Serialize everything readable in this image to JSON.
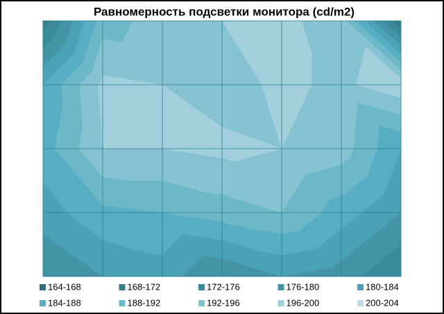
{
  "chart_data": {
    "type": "contour",
    "title": "Равномерность  подсветки монитора  (cd/m2)",
    "values": [
      [
        170,
        190,
        194,
        196,
        197,
        194,
        168
      ],
      [
        184,
        197,
        196,
        194,
        197,
        195,
        199
      ],
      [
        186,
        196,
        196,
        197,
        196,
        194,
        184
      ],
      [
        182,
        187,
        188,
        190,
        192,
        186,
        180
      ],
      [
        176,
        180,
        182,
        176,
        180,
        178,
        172
      ]
    ],
    "bands": [
      {
        "name": "164-168",
        "from": 164,
        "to": 168,
        "color": "#2f7080"
      },
      {
        "name": "168-172",
        "from": 168,
        "to": 172,
        "color": "#347e8f"
      },
      {
        "name": "172-176",
        "from": 172,
        "to": 176,
        "color": "#3b8a9b"
      },
      {
        "name": "176-180",
        "from": 176,
        "to": 180,
        "color": "#4494a5"
      },
      {
        "name": "180-184",
        "from": 180,
        "to": 184,
        "color": "#4ba1b5"
      },
      {
        "name": "184-188",
        "from": 184,
        "to": 188,
        "color": "#57adc1"
      },
      {
        "name": "188-192",
        "from": 188,
        "to": 192,
        "color": "#6cb8c9"
      },
      {
        "name": "192-196",
        "from": 192,
        "to": 196,
        "color": "#86c3d2"
      },
      {
        "name": "196-200",
        "from": 196,
        "to": 200,
        "color": "#a2cfdb"
      },
      {
        "name": "200-204",
        "from": 200,
        "to": 204,
        "color": "#bddce5"
      }
    ]
  }
}
